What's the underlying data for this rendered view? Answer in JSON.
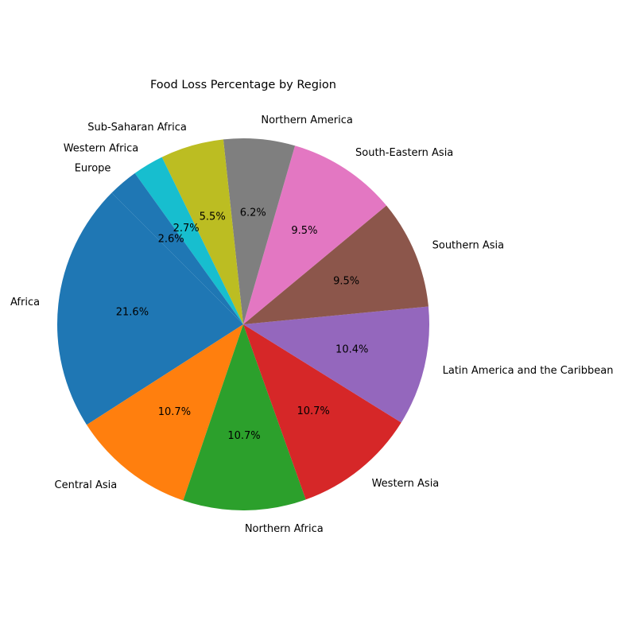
{
  "chart_data": {
    "type": "pie",
    "title": "Food Loss Percentage by Region",
    "start_angle_deg": 135,
    "direction": "counterclockwise",
    "legend": "none",
    "slices": [
      {
        "label": "Africa",
        "percent_label": "21.6%",
        "value": 21.6,
        "color": "#1f77b4"
      },
      {
        "label": "Central Asia",
        "percent_label": "10.7%",
        "value": 10.7,
        "color": "#ff7f0e"
      },
      {
        "label": "Northern Africa",
        "percent_label": "10.7%",
        "value": 10.7,
        "color": "#2ca02c"
      },
      {
        "label": "Western Asia",
        "percent_label": "10.7%",
        "value": 10.7,
        "color": "#d62728"
      },
      {
        "label": "Latin America and the Caribbean",
        "percent_label": "10.4%",
        "value": 10.4,
        "color": "#9467bd"
      },
      {
        "label": "Southern Asia",
        "percent_label": "9.5%",
        "value": 9.5,
        "color": "#8c564b"
      },
      {
        "label": "South-Eastern Asia",
        "percent_label": "9.5%",
        "value": 9.5,
        "color": "#e377c2"
      },
      {
        "label": "Northern America",
        "percent_label": "6.2%",
        "value": 6.2,
        "color": "#7f7f7f"
      },
      {
        "label": "Sub-Saharan Africa",
        "percent_label": "5.5%",
        "value": 5.5,
        "color": "#bcbd22"
      },
      {
        "label": "Western Africa",
        "percent_label": "2.7%",
        "value": 2.7,
        "color": "#17becf"
      },
      {
        "label": "Europe",
        "percent_label": "2.6%",
        "value": 2.6,
        "color": "#1f77b4"
      }
    ]
  }
}
